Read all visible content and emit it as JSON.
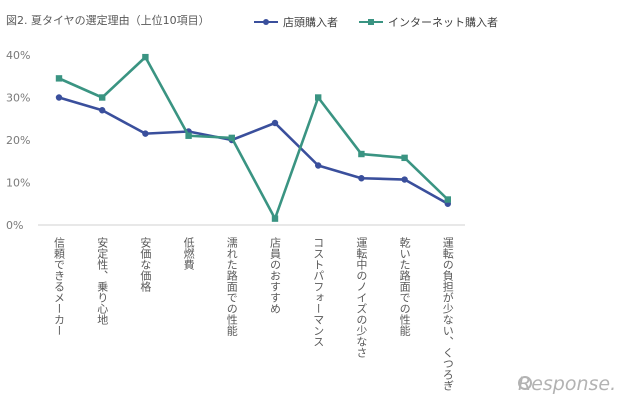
{
  "chart_data": {
    "type": "line",
    "title": "図2. 夏タイヤの選定理由（上位10項目）",
    "categories": [
      "信頼できるメーカー",
      "安定性、乗り心地",
      "安価な価格",
      "低燃費",
      "濡れた路面での性能",
      "店員のおすすめ",
      "コストパフォーマンス",
      "運転中のノイズの少なさ",
      "乾いた路面での性能",
      "運転の負担が少ない、くつろぎ"
    ],
    "series": [
      {
        "name": "店頭購入者",
        "color": "#3a4f9c",
        "marker": "circle",
        "values": [
          30,
          27,
          21.5,
          22,
          20,
          24,
          14,
          11,
          10.7,
          5
        ]
      },
      {
        "name": "インターネット購入者",
        "color": "#3a9482",
        "marker": "square",
        "values": [
          34.5,
          30,
          39.5,
          21,
          20.5,
          1.5,
          30,
          16.7,
          15.8,
          6
        ]
      }
    ],
    "yticks": [
      "0%",
      "10%",
      "20%",
      "30%",
      "40%"
    ],
    "ylim": [
      0,
      40
    ],
    "xlabel": "",
    "ylabel": "",
    "grid": false,
    "legend": "top"
  },
  "watermark": {
    "text": "Response."
  }
}
